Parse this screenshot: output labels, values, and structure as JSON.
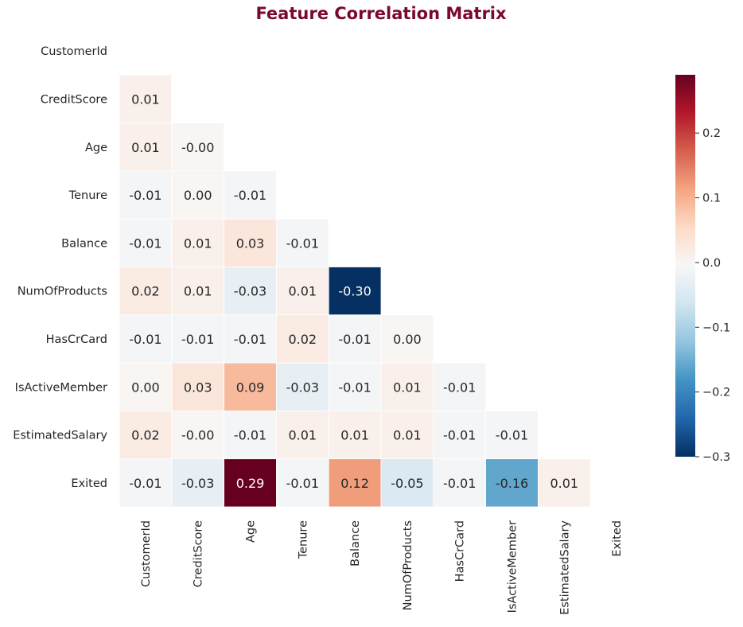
{
  "chart_data": {
    "type": "heatmap",
    "title": "Feature Correlation Matrix",
    "xlabel": "",
    "ylabel": "",
    "variables": [
      "CustomerId",
      "CreditScore",
      "Age",
      "Tenure",
      "Balance",
      "NumOfProducts",
      "HasCrCard",
      "IsActiveMember",
      "EstimatedSalary",
      "Exited"
    ],
    "mask": "upper-triangle-including-diagonal",
    "lower_triangle": [
      [],
      [
        0.01
      ],
      [
        0.01,
        -0.0
      ],
      [
        -0.01,
        0.0,
        -0.01
      ],
      [
        -0.01,
        0.01,
        0.03,
        -0.01
      ],
      [
        0.02,
        0.01,
        -0.03,
        0.01,
        -0.3
      ],
      [
        -0.01,
        -0.01,
        -0.01,
        0.02,
        -0.01,
        0.0
      ],
      [
        0.0,
        0.03,
        0.09,
        -0.03,
        -0.01,
        0.01,
        -0.01
      ],
      [
        0.02,
        -0.0,
        -0.01,
        0.01,
        0.01,
        0.01,
        -0.01,
        -0.01
      ],
      [
        -0.01,
        -0.03,
        0.29,
        -0.01,
        0.12,
        -0.05,
        -0.01,
        -0.16,
        0.01
      ]
    ],
    "annotations": [
      [],
      [
        "0.01"
      ],
      [
        "0.01",
        "-0.00"
      ],
      [
        "-0.01",
        "0.00",
        "-0.01"
      ],
      [
        "-0.01",
        "0.01",
        "0.03",
        "-0.01"
      ],
      [
        "0.02",
        "0.01",
        "-0.03",
        "0.01",
        "-0.30"
      ],
      [
        "-0.01",
        "-0.01",
        "-0.01",
        "0.02",
        "-0.01",
        "0.00"
      ],
      [
        "0.00",
        "0.03",
        "0.09",
        "-0.03",
        "-0.01",
        "0.01",
        "-0.01"
      ],
      [
        "0.02",
        "-0.00",
        "-0.01",
        "0.01",
        "0.01",
        "0.01",
        "-0.01",
        "-0.01"
      ],
      [
        "-0.01",
        "-0.03",
        "0.29",
        "-0.01",
        "0.12",
        "-0.05",
        "-0.01",
        "-0.16",
        "0.01"
      ]
    ],
    "colormap": "RdBu_r",
    "vmin": -0.3,
    "vmax": 0.29,
    "colorbar": {
      "ticks": [
        0.2,
        0.1,
        0.0,
        -0.1,
        -0.2,
        -0.3
      ],
      "tick_labels": [
        "0.2",
        "0.1",
        "0.0",
        "−0.1",
        "−0.2",
        "−0.3"
      ]
    },
    "colors": {
      "title": "#7a0a2c",
      "min": "#053061",
      "mid": "#f7f7f7",
      "max": "#67001f"
    }
  }
}
